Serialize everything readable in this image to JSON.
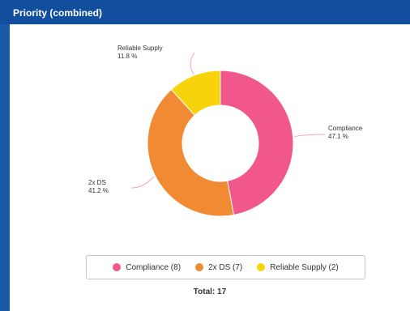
{
  "panel": {
    "title": "Priority (combined)"
  },
  "chart_data": {
    "type": "pie",
    "style": "donut",
    "categories": [
      "Compliance",
      "2x DS",
      "Reliable Supply"
    ],
    "values": [
      8,
      7,
      2
    ],
    "percent_labels": [
      "47.1 %",
      "41.2 %",
      "11.8 %"
    ],
    "colors": [
      "#f2578c",
      "#f08a33",
      "#f6d30b"
    ],
    "legend": {
      "placement": "bottom",
      "entries": [
        "Compliance (8)",
        "2x DS (7)",
        "Reliable Supply (2)"
      ]
    },
    "total_label": "Total: 17"
  }
}
